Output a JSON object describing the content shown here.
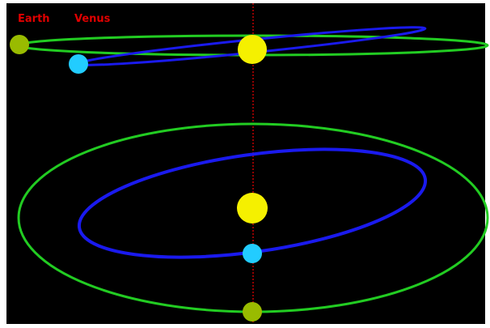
{
  "labels": {
    "earth": "Earth",
    "venus": "Venus"
  }
}
